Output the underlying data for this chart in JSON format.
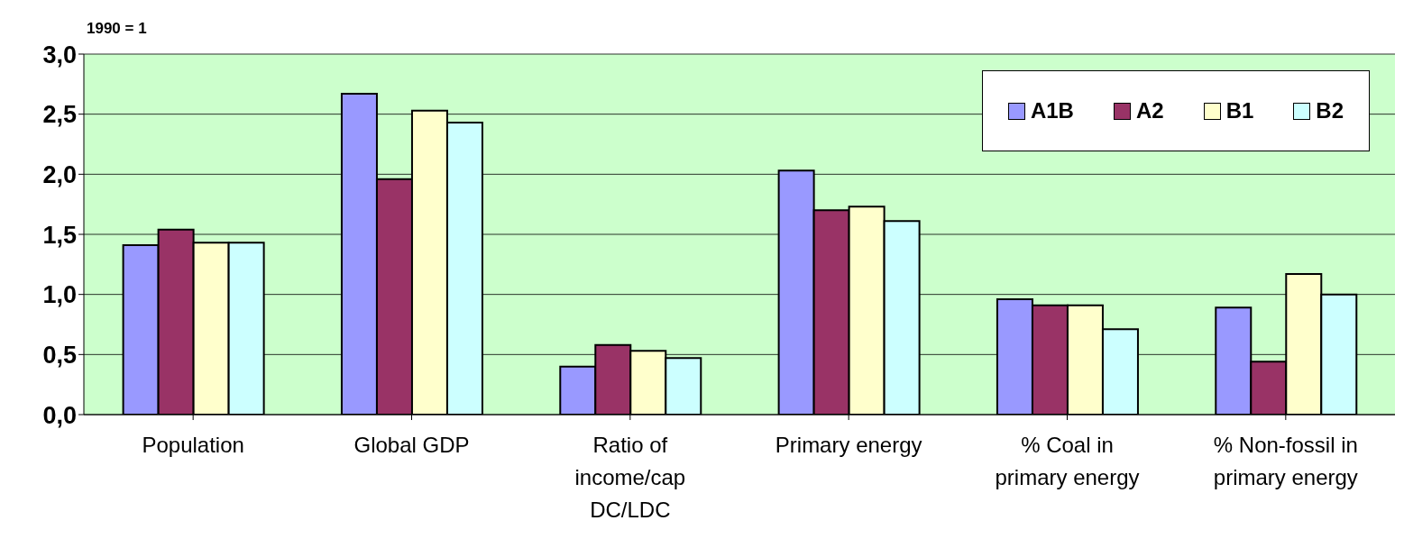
{
  "chart_data": {
    "type": "bar",
    "ylabel": "1990 = 1",
    "categories": [
      "Population",
      "Global GDP",
      "Ratio of income/cap DC/LDC",
      "Primary energy",
      "% Coal in primary energy",
      "% Non-fossil in primary energy"
    ],
    "series": [
      {
        "name": "A1B",
        "color": "#9999ff",
        "values": [
          1.41,
          2.67,
          0.4,
          2.03,
          0.96,
          0.89
        ]
      },
      {
        "name": "A2",
        "color": "#993366",
        "values": [
          1.54,
          1.96,
          0.58,
          1.7,
          0.91,
          0.44
        ]
      },
      {
        "name": "B1",
        "color": "#ffffcc",
        "values": [
          1.43,
          2.53,
          0.53,
          1.73,
          0.91,
          1.17
        ]
      },
      {
        "name": "B2",
        "color": "#ccffff",
        "values": [
          1.43,
          2.43,
          0.47,
          1.61,
          0.71,
          1.0
        ]
      }
    ],
    "ylim": [
      0,
      3
    ],
    "yticks": [
      {
        "value": 0,
        "label": "0,0"
      },
      {
        "value": 0.5,
        "label": "0,5"
      },
      {
        "value": 1,
        "label": "1,0"
      },
      {
        "value": 1.5,
        "label": "1,5"
      },
      {
        "value": 2,
        "label": "2,0"
      },
      {
        "value": 2.5,
        "label": "2,5"
      },
      {
        "value": 3,
        "label": "3,0"
      }
    ],
    "grid": "y",
    "legend": "top right"
  }
}
